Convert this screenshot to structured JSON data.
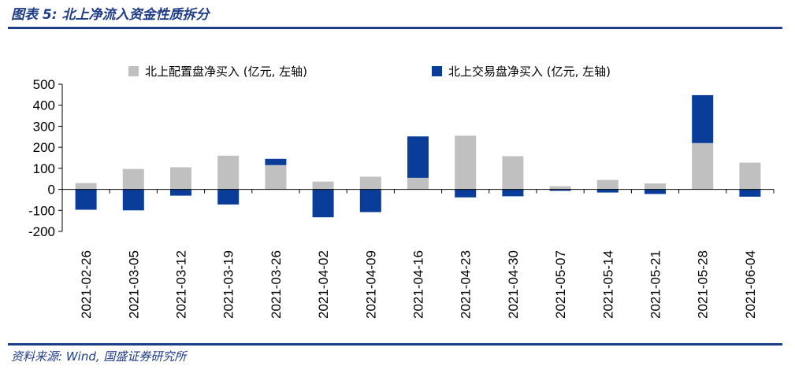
{
  "header": {
    "title": "图表 5:  北上净流入资金性质拆分"
  },
  "footer": {
    "source": "资料来源: Wind, 国盛证券研究所"
  },
  "colors": {
    "rule": "#1f3c88",
    "series_config": "#c0c0c0",
    "series_trade": "#0a3d9a"
  },
  "chart_data": {
    "type": "bar",
    "stacking": "diverging",
    "title": "",
    "xlabel": "",
    "ylabel": "",
    "ylim": [
      -200,
      500
    ],
    "yticks": [
      -200,
      -100,
      0,
      100,
      200,
      300,
      400,
      500
    ],
    "legend_position": "top",
    "categories": [
      "2021-02-26",
      "2021-03-05",
      "2021-03-12",
      "2021-03-19",
      "2021-03-26",
      "2021-04-02",
      "2021-04-09",
      "2021-04-16",
      "2021-04-23",
      "2021-04-30",
      "2021-05-07",
      "2021-05-14",
      "2021-05-21",
      "2021-05-28",
      "2021-06-04"
    ],
    "series": [
      {
        "name": "北上配置盘净买入 (亿元, 左轴)",
        "color": "#c0c0c0",
        "values": [
          30,
          97,
          105,
          160,
          115,
          37,
          60,
          55,
          255,
          158,
          15,
          45,
          28,
          220,
          127
        ]
      },
      {
        "name": "北上交易盘净买入 (亿元, 左轴)",
        "color": "#0a3d9a",
        "values": [
          -97,
          -100,
          -30,
          -72,
          30,
          -133,
          -108,
          197,
          -38,
          -33,
          -7,
          -15,
          -22,
          228,
          -35
        ]
      }
    ]
  }
}
